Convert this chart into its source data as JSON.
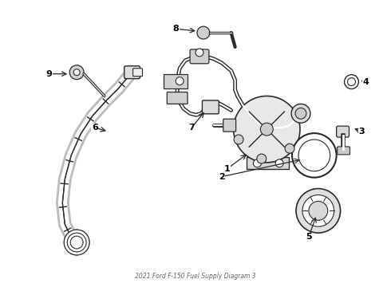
{
  "title": "2021 Ford F-150 Fuel Supply Diagram 3",
  "bg_color": "#ffffff",
  "line_color": "#2a2a2a",
  "figsize": [
    4.9,
    3.6
  ],
  "dpi": 100,
  "parts": {
    "hose_color": "#2a2a2a",
    "fill_color": "#ffffff",
    "gray_fill": "#e8e8e8"
  }
}
